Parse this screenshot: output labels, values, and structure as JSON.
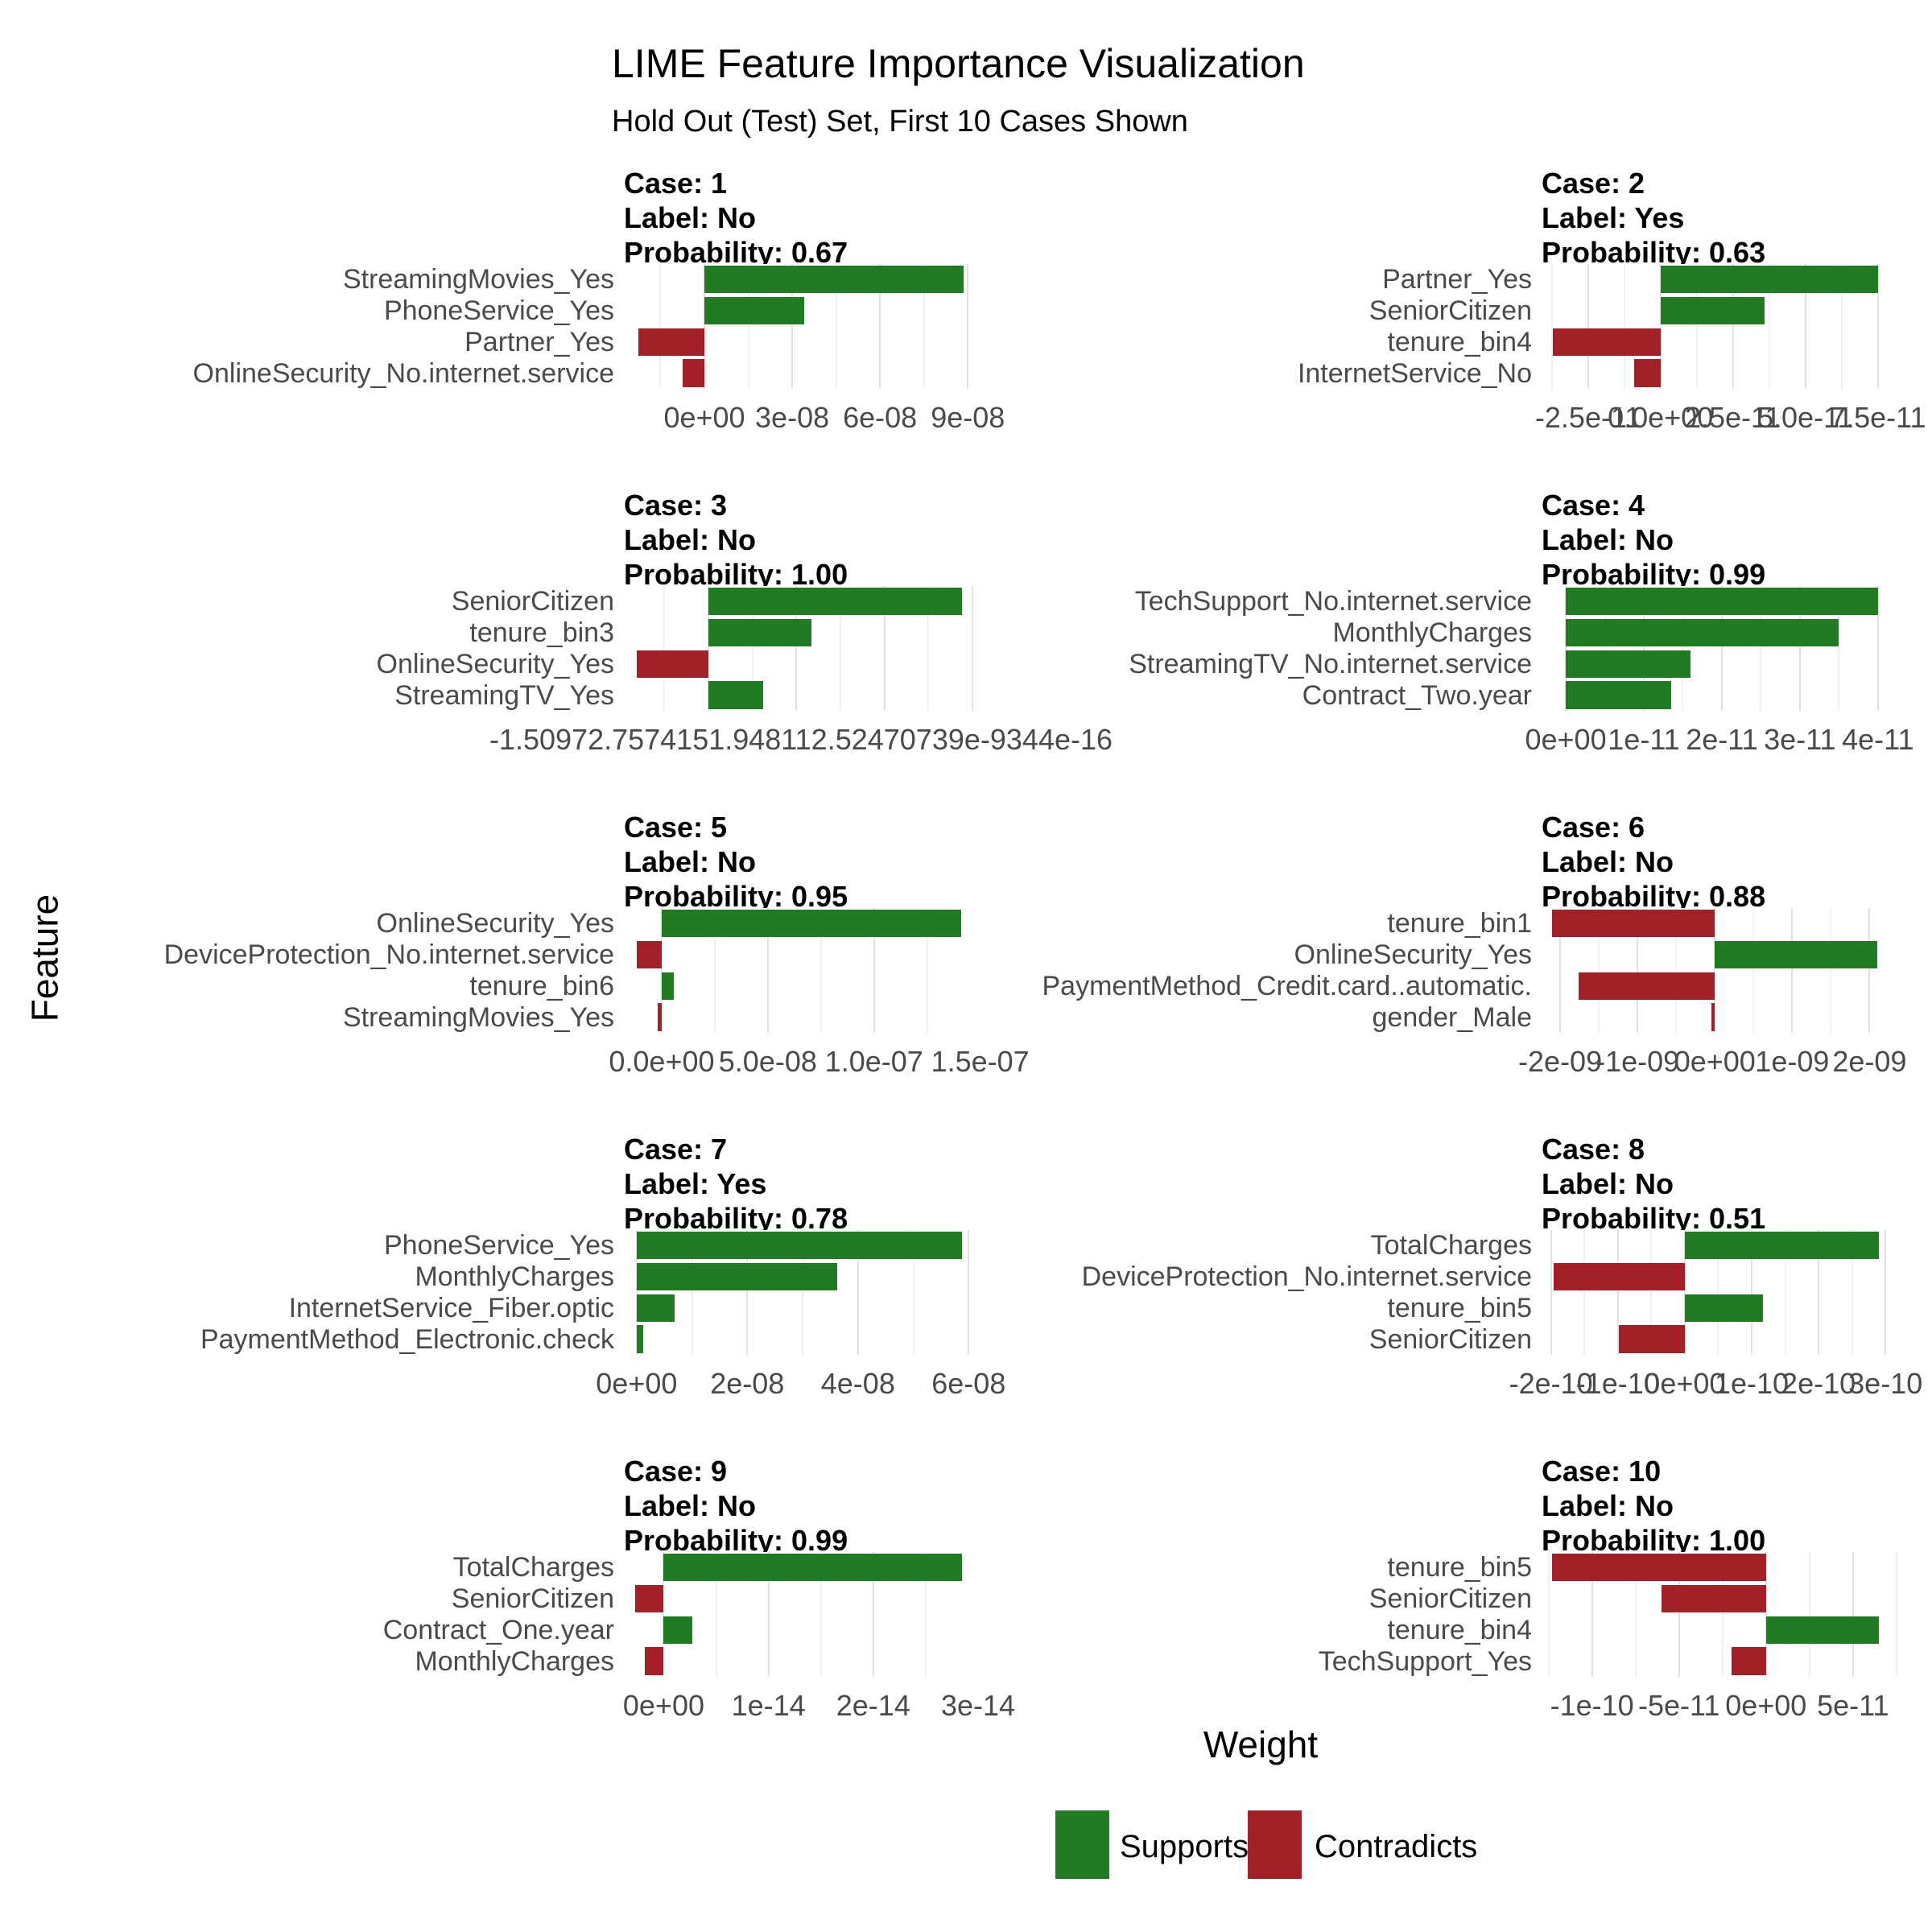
{
  "title": "LIME Feature Importance Visualization",
  "subtitle": "Hold Out (Test) Set, First 10 Cases Shown",
  "x_axis_title": "Weight",
  "y_axis_title": "Feature",
  "legend": {
    "supports_label": "Supports",
    "contradicts_label": "Contradicts"
  },
  "colors": {
    "supports": "#227B22",
    "contradicts": "#A32026",
    "grid_major": "#E2E2E2",
    "grid_minor": "#F0F0F0",
    "axis_text": "#4A4A4A",
    "strip_text": "#000000"
  },
  "chart_data": {
    "type": "bar",
    "orientation": "horizontal",
    "facets": [
      {
        "case": "Case: 1",
        "label_line": "Label: No",
        "prob_line": "Probability: 0.67",
        "label": "No",
        "probability": 0.67,
        "bars": [
          {
            "feature": "StreamingMovies_Yes",
            "weight": 8.85e-08,
            "direction": "Supports"
          },
          {
            "feature": "PhoneService_Yes",
            "weight": 3.4e-08,
            "direction": "Supports"
          },
          {
            "feature": "Partner_Yes",
            "weight": -2.25e-08,
            "direction": "Contradicts"
          },
          {
            "feature": "OnlineSecurity_No.internet.service",
            "weight": -7.5e-09,
            "direction": "Contradicts"
          }
        ],
        "x_min": -2.75e-08,
        "x_max": 9.35e-08,
        "ticks": [
          {
            "v": 0,
            "t": "0e+00"
          },
          {
            "v": 3e-08,
            "t": "3e-08"
          },
          {
            "v": 6e-08,
            "t": "6e-08"
          },
          {
            "v": 9e-08,
            "t": "9e-08"
          }
        ],
        "tick_overlap_raw": null
      },
      {
        "case": "Case: 2",
        "label_line": "Label: Yes",
        "prob_line": "Probability: 0.63",
        "label": "Yes",
        "probability": 0.63,
        "bars": [
          {
            "feature": "Partner_Yes",
            "weight": 7.5e-11,
            "direction": "Supports"
          },
          {
            "feature": "SeniorCitizen",
            "weight": 3.6e-11,
            "direction": "Supports"
          },
          {
            "feature": "tenure_bin4",
            "weight": -3.7e-11,
            "direction": "Contradicts"
          },
          {
            "feature": "InternetService_No",
            "weight": -9e-12,
            "direction": "Contradicts"
          }
        ],
        "x_min": -4.1e-11,
        "x_max": 8.2e-11,
        "ticks": [
          {
            "v": -2.5e-11,
            "t": "-2.5e-11"
          },
          {
            "v": 0,
            "t": "0.0e+00"
          },
          {
            "v": 2.5e-11,
            "t": "2.5e-11"
          },
          {
            "v": 5e-11,
            "t": "5.0e-11"
          },
          {
            "v": 7.5e-11,
            "t": "7.5e-11"
          }
        ],
        "tick_overlap_raw": null
      },
      {
        "case": "Case: 3",
        "label_line": "Label: No",
        "prob_line": "Probability: 1.00",
        "label": "No",
        "probability": 1.0,
        "bars": [
          {
            "feature": "SeniorCitizen",
            "weight": 4.9e-16,
            "direction": "Supports"
          },
          {
            "feature": "tenure_bin3",
            "weight": 2e-16,
            "direction": "Supports"
          },
          {
            "feature": "OnlineSecurity_Yes",
            "weight": -1.38e-16,
            "direction": "Contradicts"
          },
          {
            "feature": "StreamingTV_Yes",
            "weight": 1.06e-16,
            "direction": "Supports"
          }
        ],
        "x_min": -1.63e-16,
        "x_max": 5.21e-16,
        "ticks": [
          {
            "v": 0,
            "t": ""
          },
          {
            "v": 1.7e-16,
            "t": ""
          },
          {
            "v": 3.4e-16,
            "t": ""
          },
          {
            "v": 5.1e-16,
            "t": ""
          }
        ],
        "tick_overlap_raw": "-1.50972.7574151.948112.52470739e-9344e-16"
      },
      {
        "case": "Case: 4",
        "label_line": "Label: No",
        "prob_line": "Probability: 0.99",
        "label": "No",
        "probability": 0.99,
        "bars": [
          {
            "feature": "TechSupport_No.internet.service",
            "weight": 4e-11,
            "direction": "Supports"
          },
          {
            "feature": "MonthlyCharges",
            "weight": 3.5e-11,
            "direction": "Supports"
          },
          {
            "feature": "StreamingTV_No.internet.service",
            "weight": 1.6e-11,
            "direction": "Supports"
          },
          {
            "feature": "Contract_Two.year",
            "weight": 1.35e-11,
            "direction": "Supports"
          }
        ],
        "x_min": -3.1e-12,
        "x_max": 4.26e-11,
        "ticks": [
          {
            "v": 0,
            "t": "0e+00"
          },
          {
            "v": 1e-11,
            "t": "1e-11"
          },
          {
            "v": 2e-11,
            "t": "2e-11"
          },
          {
            "v": 3e-11,
            "t": "3e-11"
          },
          {
            "v": 4e-11,
            "t": "4e-11"
          }
        ],
        "tick_overlap_raw": null
      },
      {
        "case": "Case: 5",
        "label_line": "Label: No",
        "prob_line": "Probability: 0.95",
        "label": "No",
        "probability": 0.95,
        "bars": [
          {
            "feature": "OnlineSecurity_Yes",
            "weight": 1.41e-07,
            "direction": "Supports"
          },
          {
            "feature": "DeviceProtection_No.internet.service",
            "weight": -1.17e-08,
            "direction": "Contradicts"
          },
          {
            "feature": "tenure_bin6",
            "weight": 5.7e-09,
            "direction": "Supports"
          },
          {
            "feature": "StreamingMovies_Yes",
            "weight": -2e-09,
            "direction": "Contradicts"
          }
        ],
        "x_min": -1.78e-08,
        "x_max": 1.49e-07,
        "ticks": [
          {
            "v": 0,
            "t": "0.0e+00"
          },
          {
            "v": 5e-08,
            "t": "5.0e-08"
          },
          {
            "v": 1e-07,
            "t": "1.0e-07"
          },
          {
            "v": 1.5e-07,
            "t": "1.5e-07"
          }
        ],
        "tick_overlap_raw": null
      },
      {
        "case": "Case: 6",
        "label_line": "Label: No",
        "prob_line": "Probability: 0.88",
        "label": "No",
        "probability": 0.88,
        "bars": [
          {
            "feature": "tenure_bin1",
            "weight": -2.1e-09,
            "direction": "Contradicts"
          },
          {
            "feature": "OnlineSecurity_Yes",
            "weight": 2.1e-09,
            "direction": "Supports"
          },
          {
            "feature": "PaymentMethod_Credit.card..automatic.",
            "weight": -1.76e-09,
            "direction": "Contradicts"
          },
          {
            "feature": "gender_Male",
            "weight": -4e-11,
            "direction": "Contradicts"
          }
        ],
        "x_min": -2.24e-09,
        "x_max": 2.37e-09,
        "ticks": [
          {
            "v": -2e-09,
            "t": "-2e-09"
          },
          {
            "v": -1e-09,
            "t": "-1e-09"
          },
          {
            "v": 0,
            "t": "0e+00"
          },
          {
            "v": 1e-09,
            "t": "1e-09"
          },
          {
            "v": 2e-09,
            "t": "2e-09"
          }
        ],
        "tick_overlap_raw": null
      },
      {
        "case": "Case: 7",
        "label_line": "Label: Yes",
        "prob_line": "Probability: 0.78",
        "label": "Yes",
        "probability": 0.78,
        "bars": [
          {
            "feature": "PhoneService_Yes",
            "weight": 5.88e-08,
            "direction": "Supports"
          },
          {
            "feature": "MonthlyCharges",
            "weight": 3.62e-08,
            "direction": "Supports"
          },
          {
            "feature": "InternetService_Fiber.optic",
            "weight": 6.8e-09,
            "direction": "Supports"
          },
          {
            "feature": "PaymentMethod_Electronic.check",
            "weight": 1.2e-09,
            "direction": "Supports"
          }
        ],
        "x_min": -2.3e-09,
        "x_max": 6.17e-08,
        "ticks": [
          {
            "v": 0,
            "t": "0e+00"
          },
          {
            "v": 2e-08,
            "t": "2e-08"
          },
          {
            "v": 4e-08,
            "t": "4e-08"
          },
          {
            "v": 6e-08,
            "t": "6e-08"
          }
        ],
        "tick_overlap_raw": null
      },
      {
        "case": "Case: 8",
        "label_line": "Label: No",
        "prob_line": "Probability: 0.51",
        "label": "No",
        "probability": 0.51,
        "bars": [
          {
            "feature": "TotalCharges",
            "weight": 2.9e-10,
            "direction": "Supports"
          },
          {
            "feature": "DeviceProtection_No.internet.service",
            "weight": -1.96e-10,
            "direction": "Contradicts"
          },
          {
            "feature": "tenure_bin5",
            "weight": 1.17e-10,
            "direction": "Supports"
          },
          {
            "feature": "SeniorCitizen",
            "weight": -9.8e-11,
            "direction": "Contradicts"
          }
        ],
        "x_min": -2.14e-10,
        "x_max": 3.19e-10,
        "ticks": [
          {
            "v": -2e-10,
            "t": "-2e-10"
          },
          {
            "v": -1e-10,
            "t": "-1e-10"
          },
          {
            "v": 0,
            "t": "0e+00"
          },
          {
            "v": 1e-10,
            "t": "1e-10"
          },
          {
            "v": 2e-10,
            "t": "2e-10"
          },
          {
            "v": 3e-10,
            "t": "3e-10"
          }
        ],
        "tick_overlap_raw": null
      },
      {
        "case": "Case: 9",
        "label_line": "Label: No",
        "prob_line": "Probability: 0.99",
        "label": "No",
        "probability": 0.99,
        "bars": [
          {
            "feature": "TotalCharges",
            "weight": 2.85e-14,
            "direction": "Supports"
          },
          {
            "feature": "SeniorCitizen",
            "weight": -2.7e-15,
            "direction": "Contradicts"
          },
          {
            "feature": "Contract_One.year",
            "weight": 2.7e-15,
            "direction": "Supports"
          },
          {
            "feature": "MonthlyCharges",
            "weight": -1.8e-15,
            "direction": "Contradicts"
          }
        ],
        "x_min": -3.8e-15,
        "x_max": 3e-14,
        "ticks": [
          {
            "v": 0,
            "t": "0e+00"
          },
          {
            "v": 1e-14,
            "t": "1e-14"
          },
          {
            "v": 2e-14,
            "t": "2e-14"
          },
          {
            "v": 3e-14,
            "t": "3e-14"
          }
        ],
        "tick_overlap_raw": null
      },
      {
        "case": "Case: 10",
        "label_line": "Label: No",
        "prob_line": "Probability: 1.00",
        "label": "No",
        "probability": 1.0,
        "bars": [
          {
            "feature": "tenure_bin5",
            "weight": -1.23e-10,
            "direction": "Contradicts"
          },
          {
            "feature": "SeniorCitizen",
            "weight": -6e-11,
            "direction": "Contradicts"
          },
          {
            "feature": "tenure_bin4",
            "weight": 6.5e-11,
            "direction": "Supports"
          },
          {
            "feature": "TechSupport_Yes",
            "weight": -2e-11,
            "direction": "Contradicts"
          }
        ],
        "x_min": -1.29e-10,
        "x_max": 7.6e-11,
        "ticks": [
          {
            "v": -1e-10,
            "t": "-1e-10"
          },
          {
            "v": -5e-11,
            "t": "-5e-11"
          },
          {
            "v": 0,
            "t": "0e+00"
          },
          {
            "v": 5e-11,
            "t": "5e-11"
          }
        ],
        "tick_overlap_raw": null
      }
    ]
  }
}
